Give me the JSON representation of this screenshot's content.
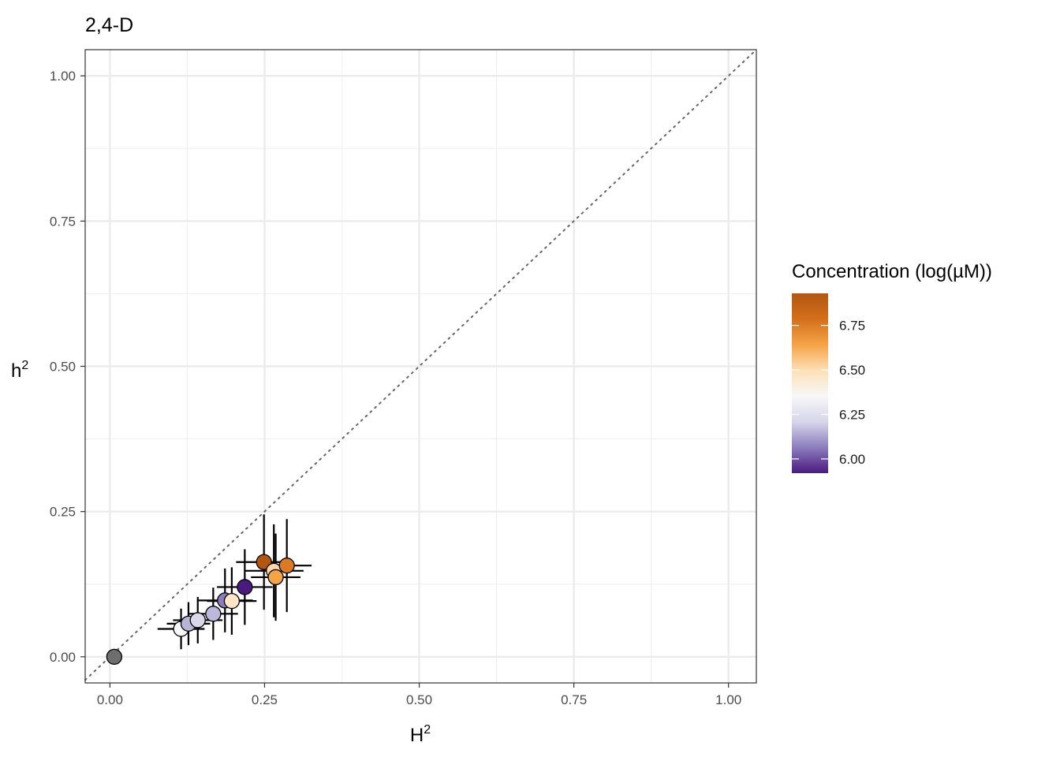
{
  "chart_data": {
    "type": "scatter",
    "title": "2,4-D",
    "xlabel": "H",
    "ylabel": "h",
    "label_superscript": "2",
    "xlim": [
      -0.04,
      1.045
    ],
    "ylim": [
      -0.045,
      1.045
    ],
    "xticks": [
      0.0,
      0.25,
      0.5,
      0.75,
      1.0
    ],
    "yticks": [
      0.0,
      0.25,
      0.5,
      0.75,
      1.0
    ],
    "xtick_labels": [
      "0.00",
      "0.25",
      "0.50",
      "0.75",
      "1.00"
    ],
    "ytick_labels": [
      "0.00",
      "0.25",
      "0.50",
      "0.75",
      "1.00"
    ],
    "grid": true,
    "reference_line": {
      "slope": 1,
      "intercept": 0,
      "style": "dotted"
    },
    "legend": {
      "title": "Concentration (log(µM))",
      "position": "right",
      "range": [
        5.92,
        6.93
      ],
      "ticks": [
        6.0,
        6.25,
        6.5,
        6.75
      ],
      "tick_labels": [
        "6.00",
        "6.25",
        "6.50",
        "6.75"
      ],
      "colors": [
        "#4b1a7f",
        "#8c7dbd",
        "#d7d6ea",
        "#f7f7f7",
        "#fde0b7",
        "#f5a445",
        "#d46f1c",
        "#b3560f"
      ]
    },
    "points": [
      {
        "x": 0.007,
        "y": 0.0,
        "xerr": 0.0,
        "yerr": 0.0,
        "color": "#6e6e6e"
      },
      {
        "x": 0.115,
        "y": 0.048,
        "xerr": 0.038,
        "yerr": 0.035,
        "color": "#f7f7f7"
      },
      {
        "x": 0.127,
        "y": 0.057,
        "xerr": 0.035,
        "yerr": 0.037,
        "color": "#b8b4d8"
      },
      {
        "x": 0.142,
        "y": 0.063,
        "xerr": 0.04,
        "yerr": 0.04,
        "color": "#d9d8ea"
      },
      {
        "x": 0.167,
        "y": 0.074,
        "xerr": 0.04,
        "yerr": 0.045,
        "color": "#bcb8db"
      },
      {
        "x": 0.186,
        "y": 0.097,
        "xerr": 0.045,
        "yerr": 0.055,
        "color": "#8c7dbd"
      },
      {
        "x": 0.197,
        "y": 0.096,
        "xerr": 0.04,
        "yerr": 0.058,
        "color": "#fde6c6"
      },
      {
        "x": 0.218,
        "y": 0.12,
        "xerr": 0.045,
        "yerr": 0.065,
        "color": "#4b1a7f"
      },
      {
        "x": 0.249,
        "y": 0.163,
        "xerr": 0.045,
        "yerr": 0.082,
        "color": "#b3560f"
      },
      {
        "x": 0.265,
        "y": 0.148,
        "xerr": 0.048,
        "yerr": 0.08,
        "color": "#fcd9a6"
      },
      {
        "x": 0.268,
        "y": 0.137,
        "xerr": 0.04,
        "yerr": 0.075,
        "color": "#f5a445"
      },
      {
        "x": 0.286,
        "y": 0.157,
        "xerr": 0.04,
        "yerr": 0.08,
        "color": "#dc7a24"
      }
    ]
  }
}
